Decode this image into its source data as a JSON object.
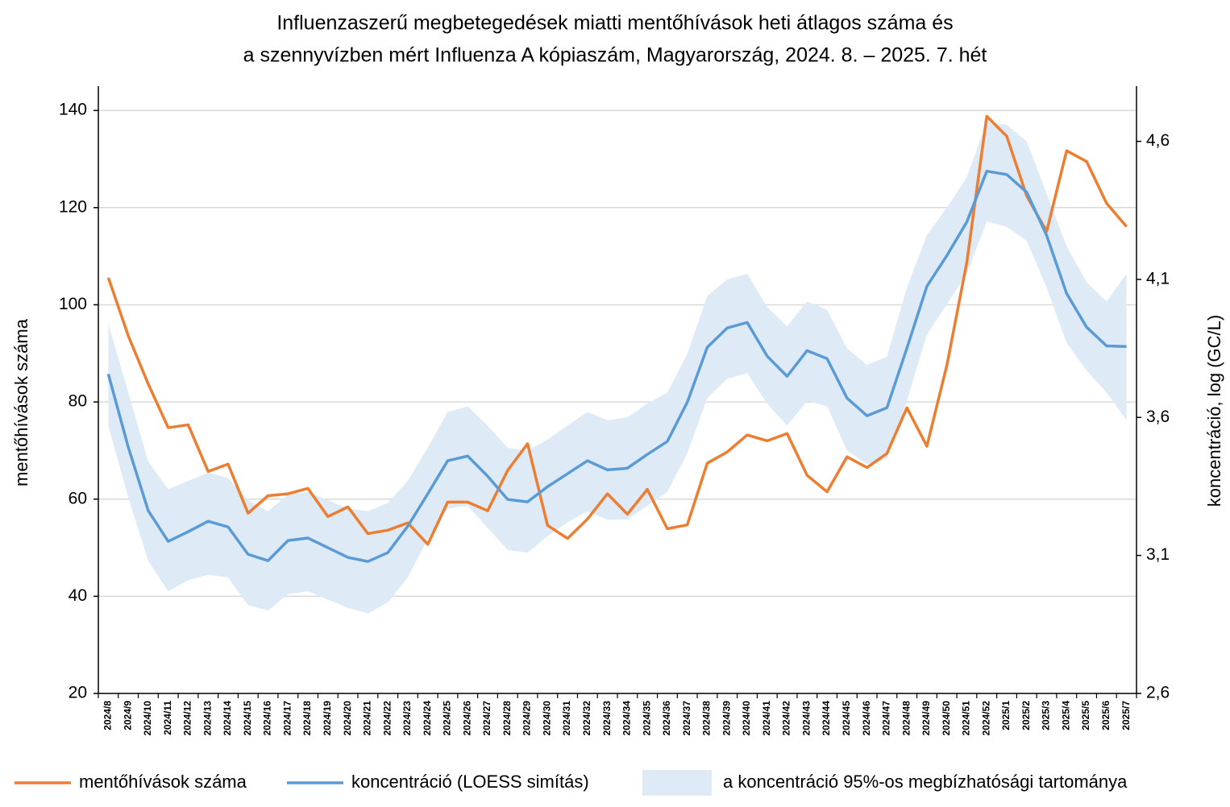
{
  "chart_data": {
    "type": "line",
    "title": [
      "Influenzaszerű megbetegedések miatti mentőhívások heti átlagos száma és",
      "a szennyvízben mért Influenza A kópiaszám, Magyarország, 2024. 8. – 2025. 7. hét"
    ],
    "y_label": "mentőhívások száma",
    "y2_label": "koncentráció, log (GC/L)",
    "categories": [
      "2024/8",
      "2024/9",
      "2024/10",
      "2024/11",
      "2024/12",
      "2024/13",
      "2024/14",
      "2024/15",
      "2024/16",
      "2024/17",
      "2024/18",
      "2024/19",
      "2024/20",
      "2024/21",
      "2024/22",
      "2024/23",
      "2024/24",
      "2024/25",
      "2024/26",
      "2024/27",
      "2024/28",
      "2024/29",
      "2024/30",
      "2024/31",
      "2024/32",
      "2024/33",
      "2024/34",
      "2024/35",
      "2024/36",
      "2024/37",
      "2024/38",
      "2024/39",
      "2024/40",
      "2024/41",
      "2024/42",
      "2024/43",
      "2024/44",
      "2024/45",
      "2024/46",
      "2024/47",
      "2024/48",
      "2024/49",
      "2024/50",
      "2024/51",
      "2024/52",
      "2025/1",
      "2025/2",
      "2025/3",
      "2025/4",
      "2025/5",
      "2025/6",
      "2025/7"
    ],
    "ylim": [
      20,
      145
    ],
    "yticks": [
      20,
      40,
      60,
      80,
      100,
      120,
      140
    ],
    "y2lim": [
      2.6,
      4.8
    ],
    "y2ticks": [
      {
        "value": 2.6,
        "label": "2,6"
      },
      {
        "value": 3.1,
        "label": "3,1"
      },
      {
        "value": 3.6,
        "label": "3,6"
      },
      {
        "value": 4.1,
        "label": "4,1"
      },
      {
        "value": 4.6,
        "label": "4,6"
      }
    ],
    "grid": true,
    "legend": "bottom",
    "series": [
      {
        "name": "a koncentráció 95%-os megbízhatósági tartománya",
        "type": "band",
        "color": "#deeaf6",
        "axis": "y2",
        "upper": [
          3.94,
          3.69,
          3.44,
          3.34,
          3.37,
          3.4,
          3.38,
          3.3,
          3.26,
          3.32,
          3.33,
          3.3,
          3.27,
          3.26,
          3.29,
          3.37,
          3.49,
          3.62,
          3.64,
          3.57,
          3.49,
          3.48,
          3.52,
          3.57,
          3.62,
          3.59,
          3.6,
          3.65,
          3.69,
          3.83,
          4.04,
          4.1,
          4.12,
          4.0,
          3.93,
          4.02,
          3.99,
          3.85,
          3.79,
          3.82,
          4.07,
          4.26,
          4.36,
          4.47,
          4.67,
          4.66,
          4.6,
          4.41,
          4.22,
          4.09,
          4.02,
          4.12
        ],
        "lower": [
          3.57,
          3.31,
          3.08,
          2.97,
          3.01,
          3.03,
          3.02,
          2.92,
          2.9,
          2.96,
          2.97,
          2.94,
          2.91,
          2.89,
          2.93,
          3.02,
          3.16,
          3.27,
          3.28,
          3.2,
          3.12,
          3.11,
          3.17,
          3.22,
          3.26,
          3.23,
          3.23,
          3.28,
          3.33,
          3.47,
          3.67,
          3.74,
          3.76,
          3.65,
          3.57,
          3.66,
          3.64,
          3.48,
          3.43,
          3.45,
          3.66,
          3.9,
          4.01,
          4.12,
          4.31,
          4.29,
          4.24,
          4.07,
          3.87,
          3.77,
          3.69,
          3.59
        ]
      },
      {
        "name": "mentőhívások száma",
        "type": "line",
        "color": "#ed7d31",
        "axis": "y",
        "values": [
          105.6,
          93.6,
          83.7,
          74.7,
          75.3,
          65.7,
          67.2,
          57.1,
          60.7,
          61.1,
          62.2,
          56.4,
          58.4,
          52.9,
          53.6,
          55.1,
          50.7,
          59.4,
          59.4,
          57.6,
          65.9,
          71.4,
          54.6,
          51.9,
          55.9,
          61.1,
          56.9,
          62.0,
          53.9,
          54.7,
          67.4,
          69.7,
          73.2,
          72.0,
          73.5,
          64.9,
          61.5,
          68.7,
          66.5,
          69.4,
          78.8,
          70.9,
          87.5,
          108.7,
          138.8,
          134.7,
          122.4,
          115.1,
          131.7,
          129.5,
          120.9,
          116.1
        ]
      },
      {
        "name": "koncentráció (LOESS simítás)",
        "type": "line",
        "color": "#5b9bd5",
        "axis": "y2",
        "values": [
          3.757,
          3.492,
          3.262,
          3.151,
          3.186,
          3.224,
          3.203,
          3.104,
          3.081,
          3.154,
          3.163,
          3.128,
          3.093,
          3.078,
          3.11,
          3.206,
          3.323,
          3.443,
          3.46,
          3.387,
          3.303,
          3.294,
          3.349,
          3.396,
          3.443,
          3.41,
          3.416,
          3.466,
          3.513,
          3.655,
          3.854,
          3.924,
          3.944,
          3.822,
          3.749,
          3.842,
          3.813,
          3.67,
          3.606,
          3.635,
          3.851,
          4.075,
          4.186,
          4.308,
          4.492,
          4.48,
          4.416,
          4.259,
          4.049,
          3.927,
          3.859,
          3.857
        ]
      }
    ]
  }
}
